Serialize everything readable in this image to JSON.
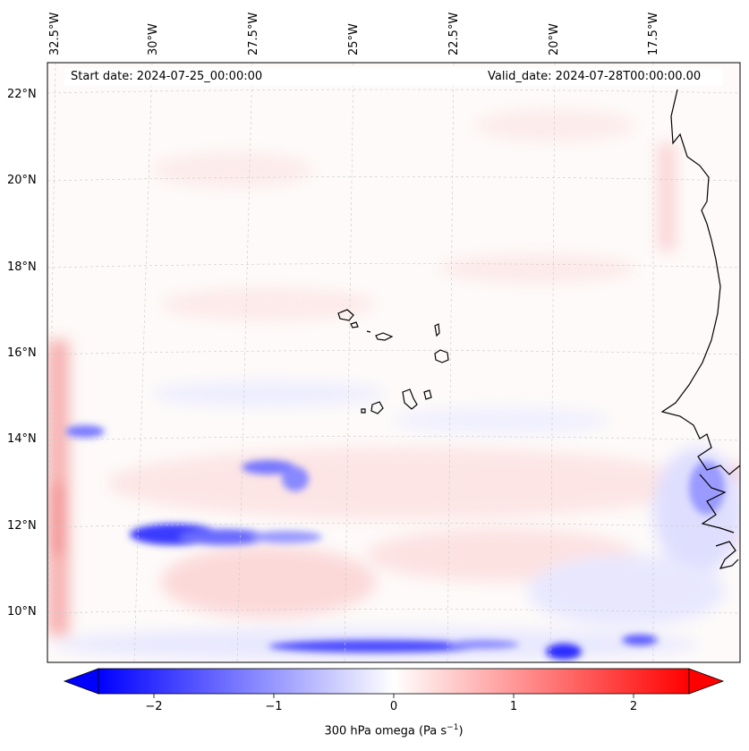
{
  "map": {
    "start_label": "Start date: 2024-07-25_00:00:00",
    "valid_label": "Valid_date: 2024-07-28T00:00:00.00",
    "lon_labels": [
      "32.5°W",
      "30°W",
      "27.5°W",
      "25°W",
      "22.5°W",
      "20°W",
      "17.5°W"
    ],
    "lat_labels": [
      "22°N",
      "20°N",
      "18°N",
      "16°N",
      "14°N",
      "12°N",
      "10°N"
    ],
    "features": [
      "gridlines",
      "coastline-west-africa",
      "cape-verde-islands",
      "omega-field-shading"
    ]
  },
  "colorbar": {
    "ticks": [
      "−2",
      "−1",
      "0",
      "1",
      "2"
    ],
    "label": "300 hPa omega (Pa s",
    "label_sup": "−1",
    "label_end": ")",
    "colors": {
      "negative": "#0000ff",
      "neutral": "#ffffff",
      "positive": "#ff0000"
    },
    "extend": "both"
  }
}
